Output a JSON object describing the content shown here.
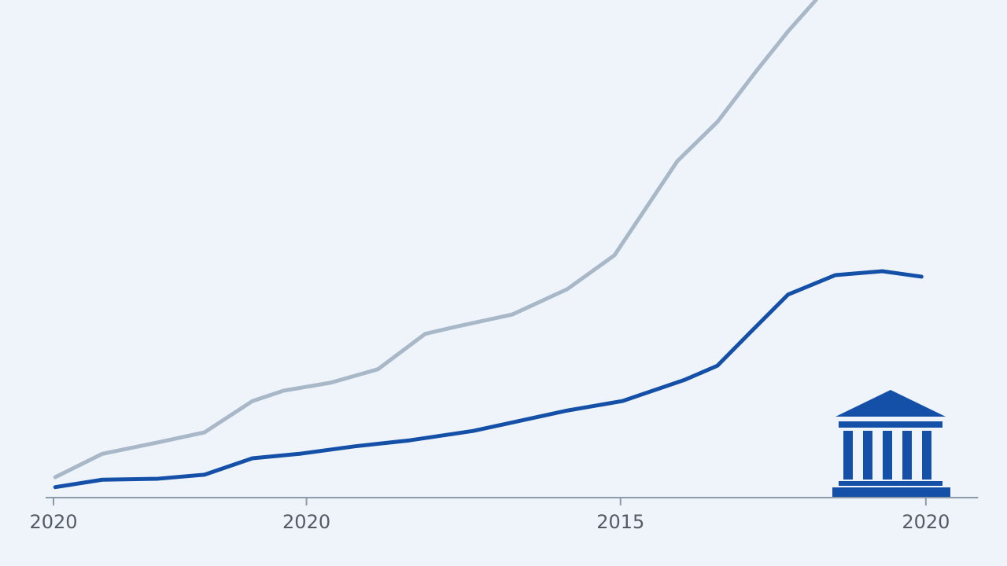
{
  "chart_data": {
    "type": "line",
    "xlim": [
      0,
      106
    ],
    "ylim": [
      0,
      100
    ],
    "xticks": [
      {
        "value": 0,
        "label": "2020"
      },
      {
        "value": 29,
        "label": "2020"
      },
      {
        "value": 65,
        "label": "2015"
      },
      {
        "value": 100,
        "label": "2020"
      }
    ],
    "series": [
      {
        "color": "#a9b8c8",
        "x": [
          0.2,
          5.6,
          12,
          17.3,
          22.8,
          26.4,
          31.8,
          37.2,
          42.6,
          46.3,
          52.6,
          58.9,
          64.3,
          71.5,
          76.1,
          80.6,
          84.2,
          87.4
        ],
        "values": [
          4.1,
          8.8,
          11.1,
          13.1,
          19.4,
          21.5,
          23.1,
          25.8,
          32.9,
          34.4,
          36.8,
          41.9,
          48.7,
          67.6,
          75.5,
          85.8,
          93.7,
          100
        ]
      },
      {
        "color": "#1450a8",
        "x": [
          0.2,
          5.6,
          12,
          17.3,
          22.8,
          28.2,
          34.5,
          40.8,
          48.1,
          58.9,
          65.2,
          72.4,
          76.1,
          79.7,
          84.2,
          89.6,
          95,
          99.5
        ],
        "values": [
          2.1,
          3.6,
          3.8,
          4.6,
          7.9,
          8.8,
          10.3,
          11.5,
          13.4,
          17.5,
          19.4,
          23.7,
          26.5,
          32.9,
          40.8,
          44.7,
          45.5,
          44.4
        ]
      }
    ]
  }
}
